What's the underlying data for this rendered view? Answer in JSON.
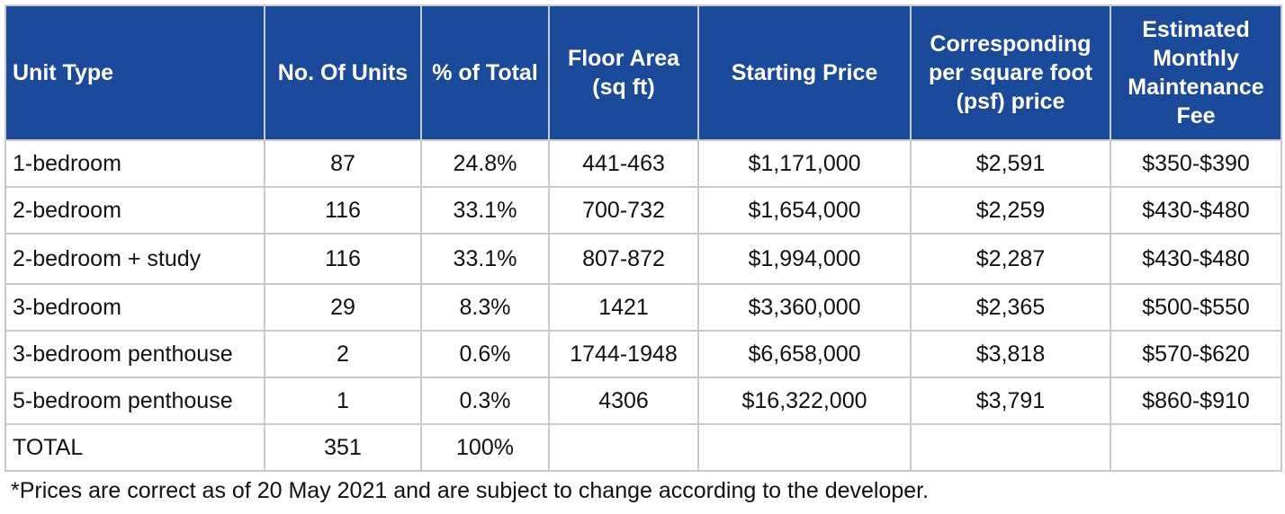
{
  "table": {
    "headers": [
      "Unit Type",
      "No. Of Units",
      "% of Total",
      "Floor Area (sq ft)",
      "Starting Price",
      "Corresponding per square foot (psf) price",
      "Estimated Monthly Maintenance Fee"
    ],
    "rows": [
      [
        "1-bedroom",
        "87",
        "24.8%",
        "441-463",
        "$1,171,000",
        "$2,591",
        "$350-$390"
      ],
      [
        "2-bedroom",
        "116",
        "33.1%",
        "700-732",
        "$1,654,000",
        "$2,259",
        "$430-$480"
      ],
      [
        "2-bedroom + study",
        "116",
        "33.1%",
        "807-872",
        "$1,994,000",
        "$2,287",
        "$430-$480"
      ],
      [
        "3-bedroom",
        "29",
        "8.3%",
        "1421",
        "$3,360,000",
        "$2,365",
        "$500-$550"
      ],
      [
        "3-bedroom penthouse",
        "2",
        "0.6%",
        "1744-1948",
        "$6,658,000",
        "$3,818",
        "$570-$620"
      ],
      [
        "5-bedroom penthouse",
        "1",
        "0.3%",
        "4306",
        "$16,322,000",
        "$3,791",
        "$860-$910"
      ],
      [
        "TOTAL",
        "351",
        "100%",
        "",
        "",
        "",
        ""
      ]
    ]
  },
  "footnote": "*Prices are correct as of 20 May 2021 and are subject to change according to the developer.",
  "colors": {
    "header_background": "#1b4a9b",
    "header_text": "#ffffff",
    "border": "#c9c9c9"
  }
}
